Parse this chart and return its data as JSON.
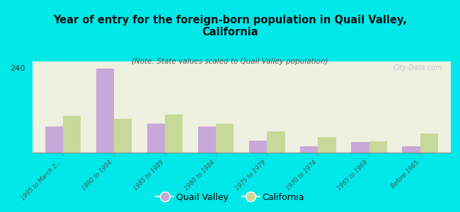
{
  "title": "Year of entry for the foreign-born population in Quail Valley,\nCalifornia",
  "subtitle": "(Note: State values scaled to Quail Valley population)",
  "categories": [
    "1995 to March 2...",
    "1990 to 1994",
    "1985 to 1989",
    "1980 to 1984",
    "1975 to 1979",
    "1970 to 1974",
    "1965 to 1969",
    "Before 1965"
  ],
  "quail_valley": [
    75,
    238,
    82,
    75,
    35,
    18,
    30,
    18
  ],
  "california": [
    105,
    97,
    108,
    82,
    60,
    45,
    32,
    55
  ],
  "quail_color": "#c8a8d8",
  "cali_color": "#c8d898",
  "background_color": "#00e8e8",
  "plot_bg_color": "#eef0e0",
  "ylim": [
    0,
    258
  ],
  "yticks": [
    0,
    240
  ],
  "bar_width": 0.35,
  "watermark": "City-Data.com",
  "legend_quail": "Quail Valley",
  "legend_cali": "California"
}
